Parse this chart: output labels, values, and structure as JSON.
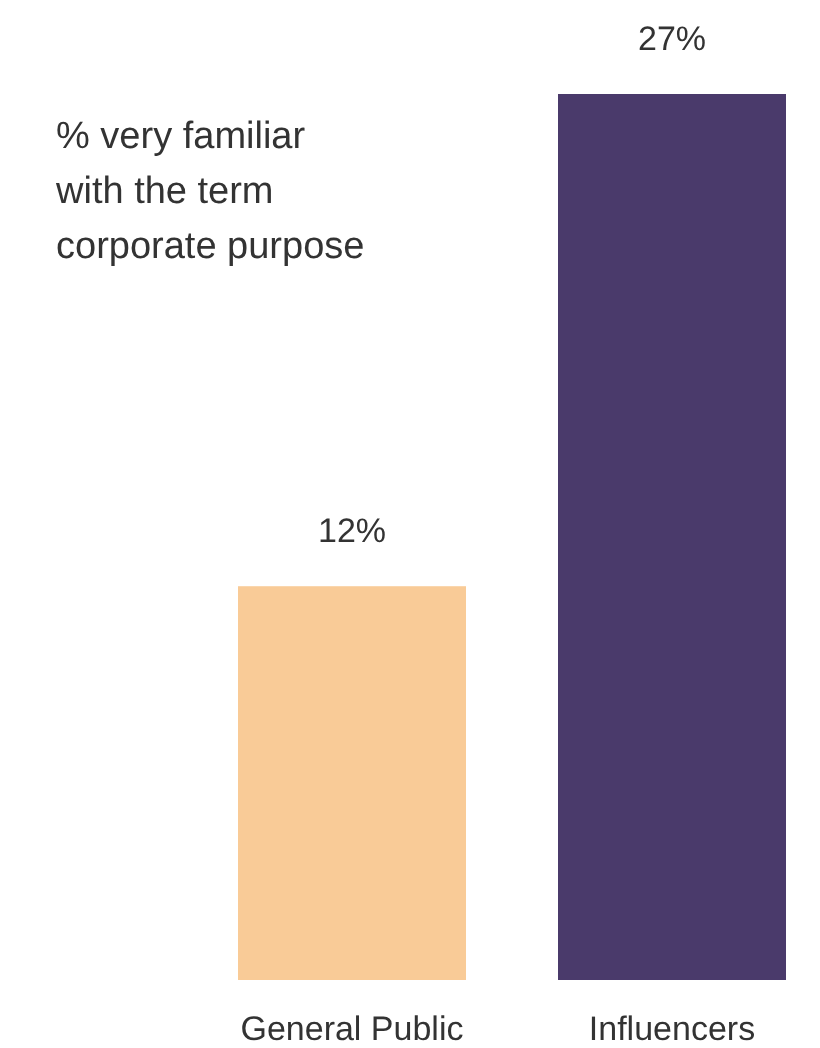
{
  "chart_data": {
    "type": "bar",
    "title": "% very familiar with the term corporate purpose",
    "categories": [
      "General Public",
      "Influencers"
    ],
    "values": [
      12,
      27
    ],
    "colors": [
      "#f9cb97",
      "#4a3a6b"
    ],
    "value_labels": [
      "12%",
      "27%"
    ],
    "ylim": [
      0,
      27
    ],
    "tick_labels": "x"
  }
}
